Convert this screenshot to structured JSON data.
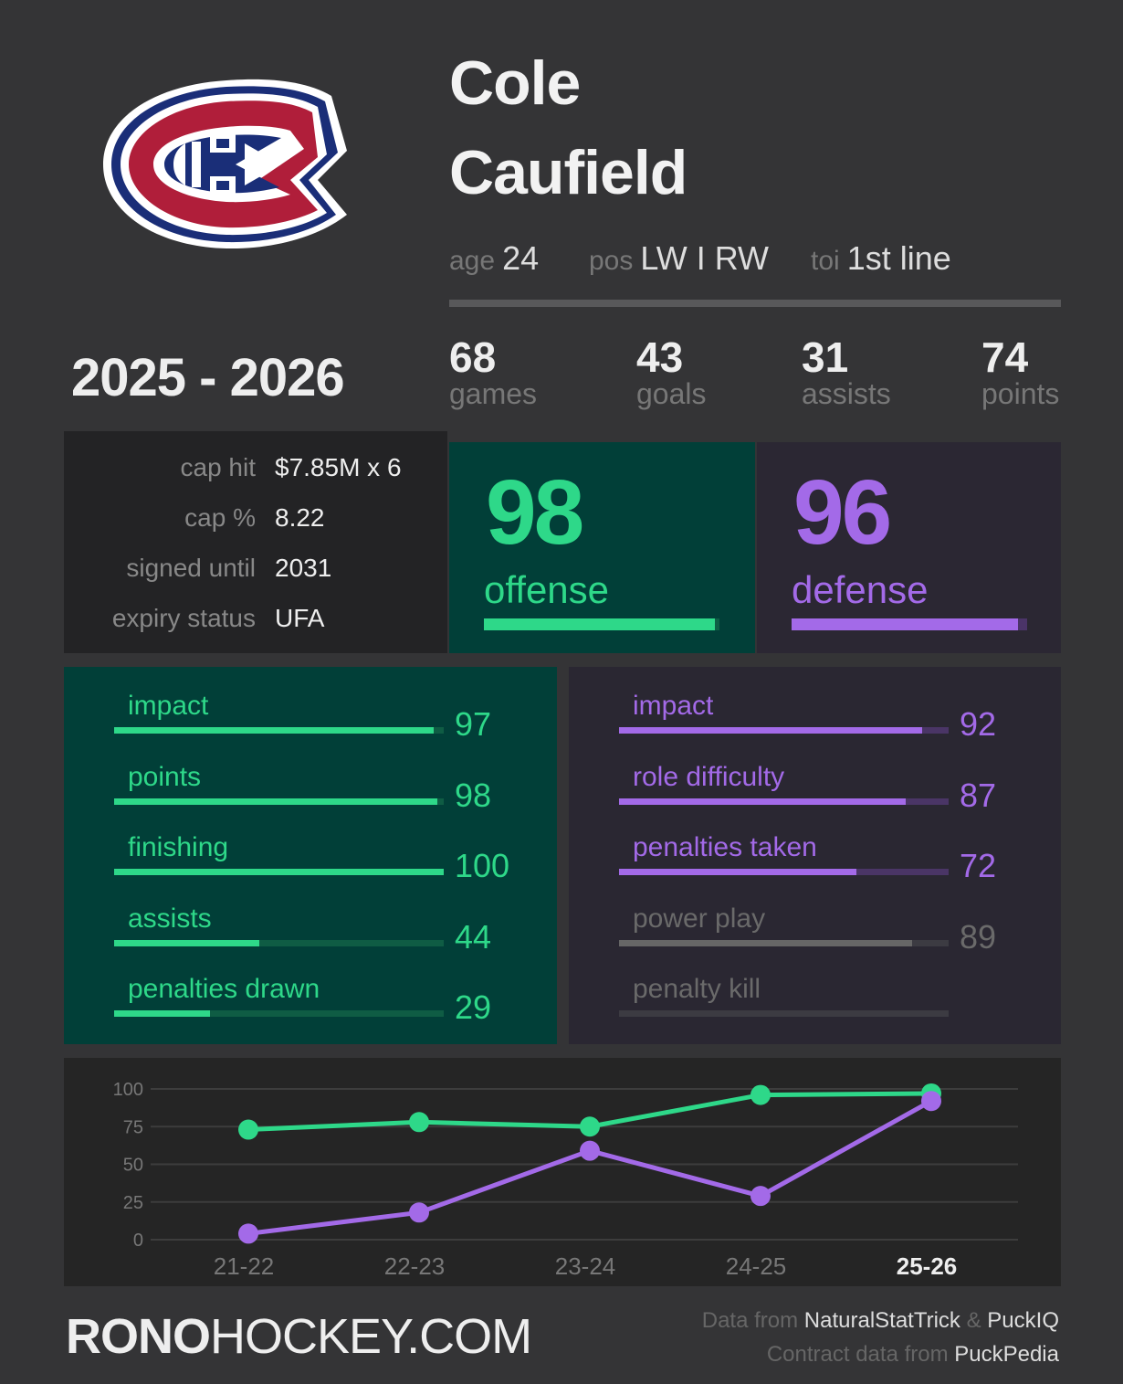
{
  "player": {
    "first_name": "Cole",
    "last_name": "Caufield",
    "age_label": "age",
    "age": "24",
    "pos_label": "pos",
    "pos": "LW I RW",
    "toi_label": "toi",
    "toi": "1st line"
  },
  "season": "2025 - 2026",
  "stats": [
    {
      "value": "68",
      "label": "games"
    },
    {
      "value": "43",
      "label": "goals"
    },
    {
      "value": "31",
      "label": "assists"
    },
    {
      "value": "74",
      "label": "points"
    }
  ],
  "contract": [
    {
      "key": "cap hit",
      "value": "$7.85M x 6"
    },
    {
      "key": "cap %",
      "value": "8.22"
    },
    {
      "key": "signed until",
      "value": "2031"
    },
    {
      "key": "expiry status",
      "value": "UFA"
    }
  ],
  "offense": {
    "score": "98",
    "label": "offense",
    "pct": 98
  },
  "defense": {
    "score": "96",
    "label": "defense",
    "pct": 96
  },
  "offense_skills": [
    {
      "label": "impact",
      "value": "97",
      "pct": 97
    },
    {
      "label": "points",
      "value": "98",
      "pct": 98
    },
    {
      "label": "finishing",
      "value": "100",
      "pct": 100
    },
    {
      "label": "assists",
      "value": "44",
      "pct": 44
    },
    {
      "label": "penalties drawn",
      "value": "29",
      "pct": 29
    }
  ],
  "defense_skills": [
    {
      "label": "impact",
      "value": "92",
      "pct": 92
    },
    {
      "label": "role difficulty",
      "value": "87",
      "pct": 87
    },
    {
      "label": "penalties taken",
      "value": "72",
      "pct": 72
    },
    {
      "label": "power play",
      "value": "89",
      "pct": 89
    },
    {
      "label": "penalty kill",
      "value": "",
      "pct": 0
    }
  ],
  "colors": {
    "green": "#2ed889",
    "purple": "#a36ae8",
    "gray": "#666666"
  },
  "chart_data": {
    "type": "line",
    "categories": [
      "21-22",
      "22-23",
      "23-24",
      "24-25",
      "25-26"
    ],
    "ylim": [
      0,
      100
    ],
    "yticks": [
      0,
      25,
      50,
      75,
      100
    ],
    "series": [
      {
        "name": "offense",
        "color": "#2ed889",
        "values": [
          73,
          78,
          75,
          96,
          97
        ]
      },
      {
        "name": "defense",
        "color": "#a36ae8",
        "values": [
          4,
          18,
          59,
          29,
          92
        ]
      }
    ]
  },
  "footer": {
    "brand_bold": "RONO",
    "brand_rest": "HOCKEY.COM",
    "data_from": "Data from",
    "source1": "NaturalStatTrick",
    "amp": "&",
    "source2": "PuckIQ",
    "contract_from": "Contract data from",
    "source3": "PuckPedia"
  }
}
